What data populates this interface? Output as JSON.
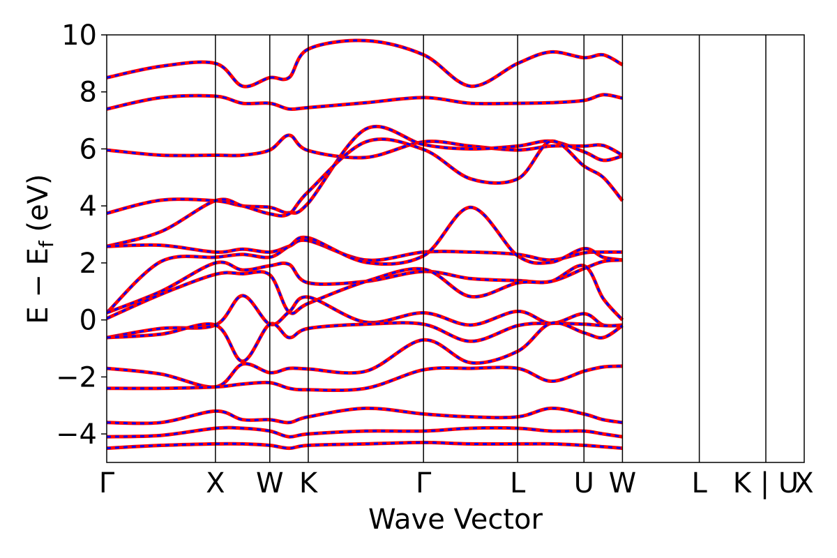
{
  "chart_data": {
    "type": "line",
    "title": "",
    "xlabel": "Wave Vector",
    "ylabel_parts": {
      "main": "E − E",
      "sub": "f",
      "unit": " (eV)"
    },
    "ylim": [
      -5,
      10
    ],
    "yticks": [
      {
        "value": -4,
        "label": "−4"
      },
      {
        "value": -2,
        "label": "−2"
      },
      {
        "value": 0,
        "label": "0"
      },
      {
        "value": 2,
        "label": "2"
      },
      {
        "value": 4,
        "label": "4"
      },
      {
        "value": 6,
        "label": "6"
      },
      {
        "value": 8,
        "label": "8"
      },
      {
        "value": 10,
        "label": "10"
      }
    ],
    "kpoints": [
      {
        "label": "Γ",
        "k": 0.0
      },
      {
        "label": "X",
        "k": 1.0
      },
      {
        "label": "W",
        "k": 1.5
      },
      {
        "label": "K",
        "k": 1.854
      },
      {
        "label": "Γ",
        "k": 2.914
      },
      {
        "label": "L",
        "k": 3.78
      },
      {
        "label": "U",
        "k": 4.39
      },
      {
        "label": "W",
        "k": 4.744
      },
      {
        "label": "L",
        "k": 5.451
      },
      {
        "label": "K | U",
        "k": 6.063
      },
      {
        "label": "X",
        "k": 6.416
      }
    ],
    "xlim": [
      0.0,
      6.416
    ],
    "band_colors": {
      "dft": "#ff0000",
      "wannier": "#0000ff"
    },
    "series_style": [
      {
        "color": "#ff0000",
        "style": "solid"
      },
      {
        "color": "#0000ff",
        "style": "dashed"
      }
    ],
    "bands": [
      [
        5.96,
        5.78,
        5.78,
        5.78,
        5.96,
        6.48,
        5.94,
        5.7,
        6.25,
        6.1,
        5.96,
        6.1,
        6.1,
        6.12,
        5.78
      ],
      [
        3.74,
        4.2,
        4.18,
        4.0,
        3.95,
        3.76,
        4.1,
        6.7,
        6.15,
        6.0,
        6.1,
        6.27,
        5.9,
        5.6,
        5.75
      ],
      [
        2.58,
        3.1,
        4.18,
        4.0,
        3.72,
        3.72,
        4.5,
        6.25,
        5.98,
        4.95,
        4.95,
        6.27,
        5.4,
        5.0,
        4.18
      ],
      [
        2.58,
        2.62,
        2.38,
        2.48,
        2.38,
        2.58,
        2.78,
        2.1,
        2.38,
        2.38,
        2.3,
        2.1,
        2.35,
        2.38,
        2.38
      ],
      [
        0.25,
        2.05,
        2.2,
        2.3,
        2.2,
        2.58,
        2.88,
        2.02,
        2.25,
        3.95,
        2.25,
        2.02,
        2.5,
        2.2,
        2.1
      ],
      [
        0.25,
        1.0,
        2.0,
        1.75,
        1.9,
        1.95,
        1.3,
        1.35,
        1.7,
        1.45,
        1.38,
        1.35,
        1.8,
        2.05,
        2.1
      ],
      [
        0.05,
        0.9,
        1.6,
        1.62,
        1.58,
        0.28,
        0.58,
        1.35,
        1.78,
        0.82,
        1.3,
        1.35,
        1.9,
        0.75,
        0.0
      ],
      [
        -0.62,
        -0.3,
        -0.18,
        0.85,
        -0.15,
        0.28,
        0.8,
        -0.08,
        0.25,
        -0.18,
        0.3,
        -0.12,
        0.22,
        -0.18,
        -0.18
      ],
      [
        -0.62,
        -0.5,
        -0.18,
        -1.45,
        -0.15,
        -0.62,
        -0.3,
        -0.15,
        -0.15,
        -0.75,
        -0.2,
        -0.12,
        -0.15,
        -0.2,
        -0.2
      ],
      [
        -1.7,
        -1.9,
        -2.35,
        -1.55,
        -1.85,
        -1.7,
        -1.72,
        -1.8,
        -0.7,
        -1.5,
        -1.1,
        -0.12,
        -0.45,
        -0.62,
        -0.2
      ],
      [
        -2.4,
        -2.4,
        -2.35,
        -2.25,
        -2.2,
        -2.4,
        -2.45,
        -2.4,
        -1.75,
        -1.7,
        -1.7,
        -2.15,
        -1.8,
        -1.65,
        -1.62
      ],
      [
        -3.6,
        -3.6,
        -3.2,
        -3.5,
        -3.5,
        -3.6,
        -3.4,
        -3.1,
        -3.3,
        -3.4,
        -3.4,
        -3.1,
        -3.3,
        -3.5,
        -3.6
      ],
      [
        -4.1,
        -4.05,
        -3.8,
        -3.8,
        -3.9,
        -4.1,
        -4.0,
        -3.9,
        -3.9,
        -3.8,
        -3.8,
        -3.9,
        -3.9,
        -4.0,
        -4.1
      ],
      [
        -4.5,
        -4.4,
        -4.35,
        -4.35,
        -4.4,
        -4.5,
        -4.4,
        -4.35,
        -4.3,
        -4.35,
        -4.35,
        -4.35,
        -4.4,
        -4.45,
        -4.5
      ],
      [
        7.4,
        7.8,
        7.85,
        7.6,
        7.6,
        7.4,
        7.45,
        7.62,
        7.8,
        7.6,
        7.6,
        7.62,
        7.7,
        7.9,
        7.78
      ],
      [
        8.5,
        8.9,
        9.0,
        8.2,
        8.5,
        8.5,
        9.5,
        9.8,
        9.3,
        8.2,
        9.0,
        9.4,
        9.2,
        9.3,
        8.95
      ]
    ]
  }
}
